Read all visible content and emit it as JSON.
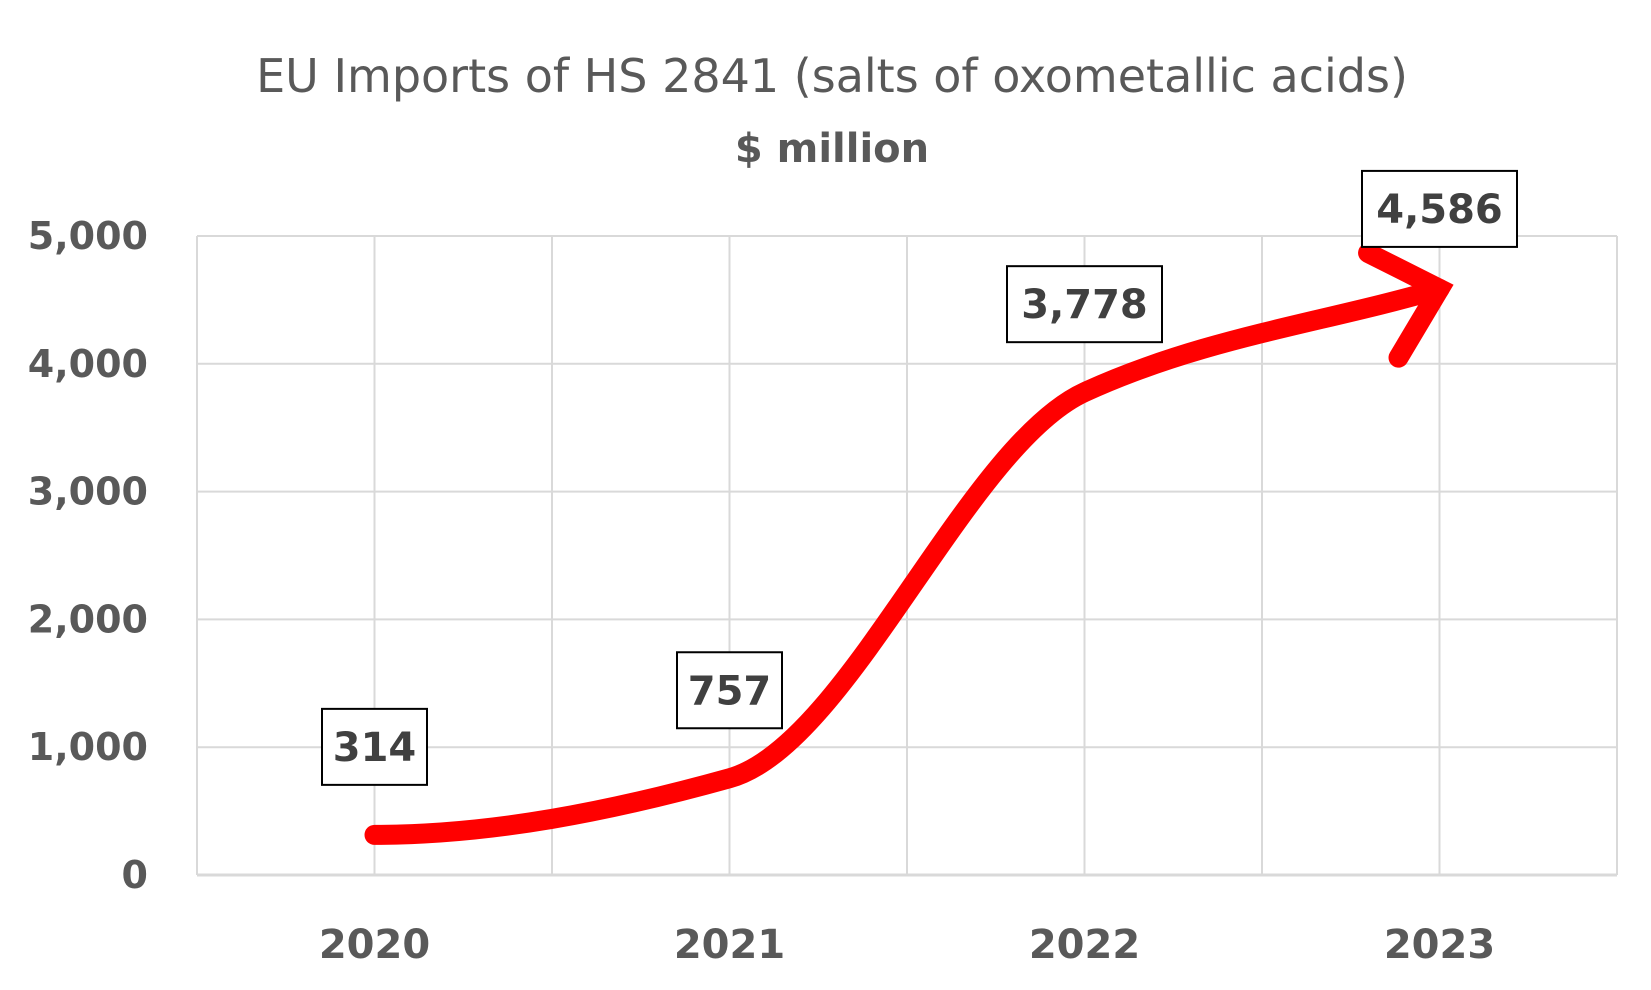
{
  "chart_data": {
    "type": "line",
    "title": "EU Imports of HS 2841 (salts of oxometallic acids)",
    "subtitle": "$ million",
    "categories": [
      "2020",
      "2021",
      "2022",
      "2023"
    ],
    "values": [
      314,
      757,
      3778,
      4586
    ],
    "data_labels": [
      "314",
      "757",
      "3,778",
      "4,586"
    ],
    "ylim": [
      0,
      5000
    ],
    "y_ticks": [
      0,
      1000,
      2000,
      3000,
      4000,
      5000
    ],
    "y_tick_labels": [
      "0",
      "1,000",
      "2,000",
      "3,000",
      "4,000",
      "5,000"
    ],
    "grid": true,
    "legend": "none",
    "line_style": "smooth arrow",
    "colors": {
      "line": "#ff0000",
      "grid": "#d9d9d9",
      "text": "#595959"
    }
  }
}
